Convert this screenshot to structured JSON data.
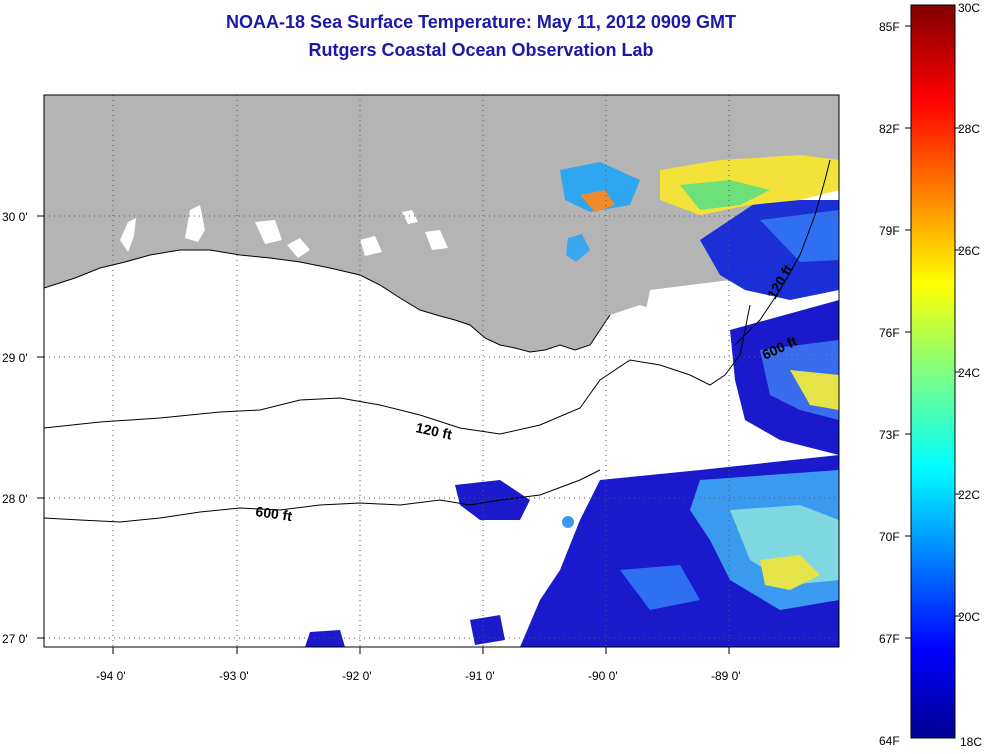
{
  "title": "NOAA-18 Sea Surface Temperature:  May 11, 2012 0909 GMT",
  "subtitle": "Rutgers Coastal Ocean Observation Lab",
  "map": {
    "lon_ticks": [
      "-94 0'",
      "-93 0'",
      "-92 0'",
      "-91 0'",
      "-90 0'",
      "-89 0'"
    ],
    "lat_ticks": [
      "30 0'",
      "29 0'",
      "28 0'",
      "27 0'"
    ],
    "contours": [
      {
        "label": "120 ft"
      },
      {
        "label": "600 ft"
      },
      {
        "label": "600 ft"
      },
      {
        "label": "120 ft"
      }
    ],
    "colors": {
      "land": "#b4b4b4",
      "no_data": "#ffffff"
    }
  },
  "colorbar": {
    "fahrenheit_labels": [
      "85F",
      "82F",
      "79F",
      "76F",
      "73F",
      "70F",
      "67F",
      "64F"
    ],
    "celsius_labels": [
      "30C",
      "28C",
      "26C",
      "24C",
      "22C",
      "20C",
      "18C"
    ],
    "colormap": "jet"
  }
}
